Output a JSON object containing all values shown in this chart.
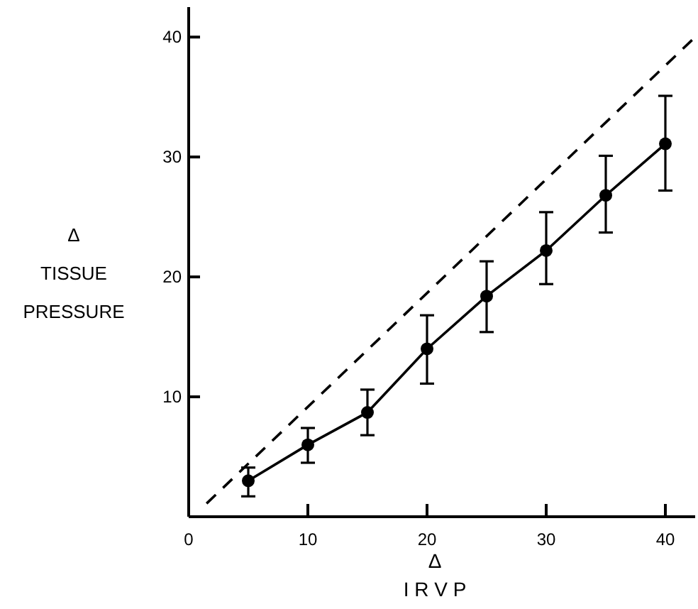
{
  "chart_data": {
    "type": "line",
    "xlabel": "Δ\nI R V P",
    "ylabel": "Δ\nTISSUE\nPRESSURE",
    "xlim": [
      0,
      42.5
    ],
    "ylim": [
      0,
      42.5
    ],
    "xticks": [
      0,
      10,
      20,
      30,
      40
    ],
    "yticks": [
      {
        "value": 0,
        "label": null
      },
      10,
      20,
      30,
      40
    ],
    "grid": false,
    "series": [
      {
        "color": "#000000",
        "marker": "circle",
        "line_style": "solid",
        "x": [
          5,
          10,
          15,
          20,
          25,
          30,
          35,
          40
        ],
        "values": [
          3,
          6,
          8.7,
          14,
          18.4,
          22.2,
          26.8,
          31.1
        ],
        "errors": [
          [
            1.7,
            4.1
          ],
          [
            4.5,
            7.4
          ],
          [
            6.8,
            10.6
          ],
          [
            11.1,
            16.8
          ],
          [
            15.4,
            21.3
          ],
          [
            19.4,
            25.4
          ],
          [
            23.7,
            30.1
          ],
          [
            27.2,
            35.1
          ]
        ]
      },
      {
        "color": "#000000",
        "marker": "none",
        "line_style": "dashed",
        "x": [
          1.5,
          42.5
        ],
        "values": [
          1.1,
          40
        ]
      }
    ]
  }
}
